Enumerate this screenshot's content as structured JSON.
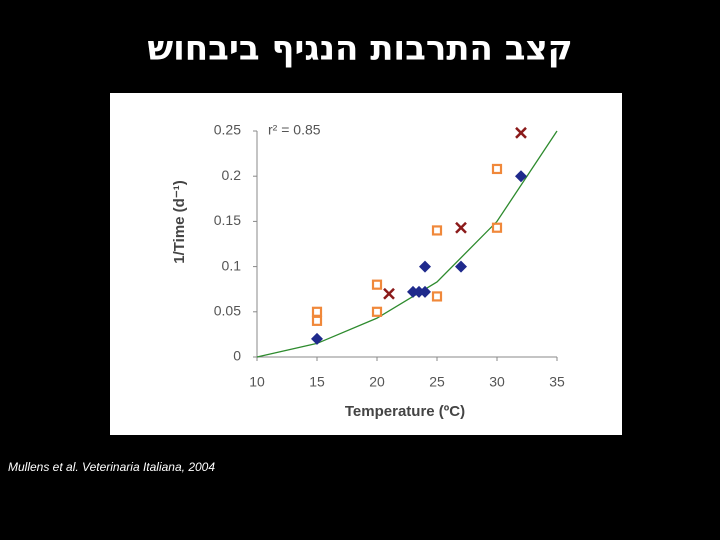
{
  "title": "קצב התרבות הנגיף ביבחוש",
  "caption": "Mullens et al. Veterinaria Italiana, 2004",
  "chart_data": {
    "type": "scatter",
    "x_label": "Temperature (ºC)",
    "y_label": "1/Time (d⁻¹)",
    "annotation": "r² = 0.85",
    "xlim": [
      10,
      35
    ],
    "xticks": [
      10,
      15,
      20,
      25,
      30,
      35
    ],
    "ylim": [
      0,
      0.25
    ],
    "yticks": [
      0,
      0.05,
      0.1,
      0.15,
      0.2,
      0.25
    ],
    "grid": false,
    "series": [
      {
        "marker": "line",
        "color": "#2e8b2e",
        "x": [
          10,
          15,
          20,
          25,
          30,
          35
        ],
        "values": [
          0,
          0.015,
          0.043,
          0.083,
          0.15,
          0.25
        ]
      },
      {
        "marker": "diamond",
        "color": "#1f2a8c",
        "x": [
          15,
          23,
          23.5,
          24,
          24,
          27,
          32
        ],
        "values": [
          0.02,
          0.072,
          0.072,
          0.1,
          0.072,
          0.1,
          0.2
        ]
      },
      {
        "marker": "square",
        "color": "#f0883a",
        "x": [
          15,
          15,
          20,
          20,
          25,
          25,
          30,
          30
        ],
        "values": [
          0.05,
          0.04,
          0.08,
          0.05,
          0.14,
          0.067,
          0.208,
          0.143
        ]
      },
      {
        "marker": "cross",
        "color": "#8b1a1a",
        "x": [
          21,
          27,
          32
        ],
        "values": [
          0.07,
          0.143,
          0.248
        ]
      }
    ]
  }
}
